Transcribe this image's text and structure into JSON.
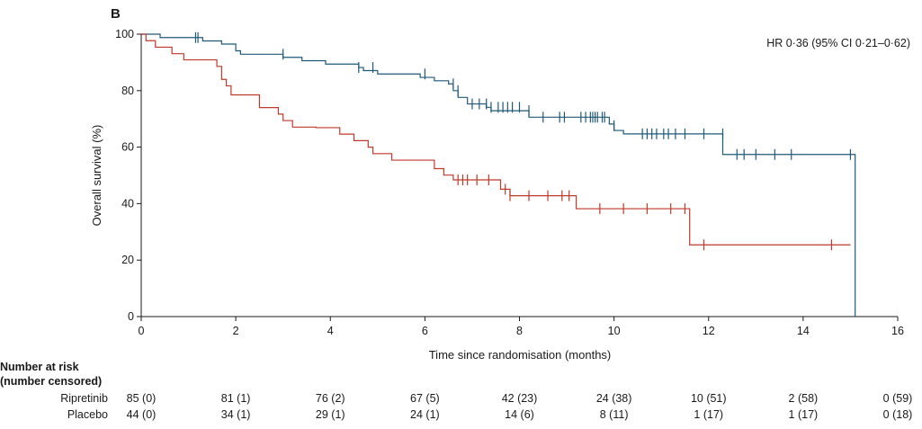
{
  "chart_data": {
    "type": "line",
    "subtype": "kaplan-meier",
    "panel_label": "B",
    "xlabel": "Time since randomisation (months)",
    "ylabel": "Overall survival (%)",
    "xlim": [
      0,
      16
    ],
    "ylim": [
      0,
      100
    ],
    "x_ticks": [
      0,
      2,
      4,
      6,
      8,
      10,
      12,
      14,
      16
    ],
    "y_ticks": [
      0,
      20,
      40,
      60,
      80,
      100
    ],
    "grid": false,
    "annotation": "HR 0·36 (95% CI 0·21–0·62)",
    "series": [
      {
        "name": "Ripretinib",
        "color": "#1f5a78",
        "steps": [
          [
            0,
            100
          ],
          [
            0.4,
            98.8
          ],
          [
            1.3,
            97.6
          ],
          [
            1.7,
            96.5
          ],
          [
            2.0,
            94.1
          ],
          [
            2.1,
            92.9
          ],
          [
            3.0,
            91.8
          ],
          [
            3.4,
            90.6
          ],
          [
            3.9,
            89.4
          ],
          [
            4.6,
            88.2
          ],
          [
            4.7,
            87.1
          ],
          [
            5.0,
            85.9
          ],
          [
            5.9,
            84.7
          ],
          [
            6.2,
            83.5
          ],
          [
            6.5,
            82.4
          ],
          [
            6.6,
            80.0
          ],
          [
            6.7,
            77.6
          ],
          [
            6.9,
            75.3
          ],
          [
            7.3,
            74.1
          ],
          [
            7.4,
            72.9
          ],
          [
            8.2,
            70.6
          ],
          [
            9.9,
            68.2
          ],
          [
            10.0,
            65.9
          ],
          [
            10.2,
            64.7
          ],
          [
            12.3,
            57.4
          ],
          [
            15.1,
            57.4
          ],
          [
            15.1,
            0
          ]
        ],
        "censored": [
          [
            1.15,
            98.8
          ],
          [
            1.2,
            98.8
          ],
          [
            3.0,
            92.9
          ],
          [
            4.6,
            88.2
          ],
          [
            4.9,
            88.2
          ],
          [
            6.0,
            85.9
          ],
          [
            6.6,
            82.4
          ],
          [
            6.7,
            80.0
          ],
          [
            7.0,
            75.3
          ],
          [
            7.15,
            75.3
          ],
          [
            7.3,
            75.3
          ],
          [
            7.4,
            74.1
          ],
          [
            7.55,
            74.1
          ],
          [
            7.65,
            74.1
          ],
          [
            7.75,
            74.1
          ],
          [
            7.85,
            74.1
          ],
          [
            8.0,
            74.1
          ],
          [
            8.2,
            72.9
          ],
          [
            8.5,
            70.6
          ],
          [
            8.85,
            70.6
          ],
          [
            8.95,
            70.6
          ],
          [
            9.3,
            70.6
          ],
          [
            9.4,
            70.6
          ],
          [
            9.5,
            70.6
          ],
          [
            9.55,
            70.6
          ],
          [
            9.6,
            70.6
          ],
          [
            9.65,
            70.6
          ],
          [
            9.75,
            70.6
          ],
          [
            9.8,
            70.6
          ],
          [
            10.0,
            67.6
          ],
          [
            10.6,
            64.7
          ],
          [
            10.7,
            64.7
          ],
          [
            10.8,
            64.7
          ],
          [
            10.9,
            64.7
          ],
          [
            11.05,
            64.7
          ],
          [
            11.15,
            64.7
          ],
          [
            11.3,
            64.7
          ],
          [
            11.5,
            64.7
          ],
          [
            11.9,
            64.7
          ],
          [
            12.3,
            64.7
          ],
          [
            12.6,
            57.4
          ],
          [
            12.75,
            57.4
          ],
          [
            13.0,
            57.4
          ],
          [
            13.4,
            57.4
          ],
          [
            13.75,
            57.4
          ],
          [
            15.0,
            57.4
          ]
        ]
      },
      {
        "name": "Placebo",
        "color": "#c0392b",
        "steps": [
          [
            0,
            100
          ],
          [
            0.1,
            97.7
          ],
          [
            0.3,
            95.4
          ],
          [
            0.65,
            93.1
          ],
          [
            0.9,
            90.9
          ],
          [
            1.6,
            88.6
          ],
          [
            1.7,
            84.0
          ],
          [
            1.8,
            81.7
          ],
          [
            1.9,
            78.5
          ],
          [
            2.5,
            74.0
          ],
          [
            2.9,
            71.7
          ],
          [
            3.0,
            69.4
          ],
          [
            3.2,
            67.1
          ],
          [
            3.7,
            66.9
          ],
          [
            4.2,
            64.6
          ],
          [
            4.5,
            62.3
          ],
          [
            4.8,
            60.0
          ],
          [
            4.9,
            57.7
          ],
          [
            5.3,
            55.4
          ],
          [
            6.2,
            52.4
          ],
          [
            6.4,
            50.1
          ],
          [
            6.6,
            48.4
          ],
          [
            7.6,
            45.1
          ],
          [
            7.8,
            42.8
          ],
          [
            9.2,
            38.2
          ],
          [
            11.6,
            25.4
          ],
          [
            15.0,
            25.4
          ]
        ],
        "censored": [
          [
            6.7,
            48.4
          ],
          [
            6.8,
            48.4
          ],
          [
            6.9,
            48.4
          ],
          [
            7.1,
            48.4
          ],
          [
            7.35,
            48.4
          ],
          [
            7.7,
            45.1
          ],
          [
            7.8,
            42.8
          ],
          [
            8.2,
            42.8
          ],
          [
            8.6,
            42.8
          ],
          [
            8.9,
            42.8
          ],
          [
            9.05,
            42.8
          ],
          [
            9.7,
            38.2
          ],
          [
            10.2,
            38.2
          ],
          [
            10.7,
            38.2
          ],
          [
            11.2,
            38.2
          ],
          [
            11.5,
            38.2
          ],
          [
            11.9,
            25.4
          ],
          [
            14.6,
            25.4
          ]
        ]
      }
    ]
  },
  "risk_table": {
    "title_line1": "Number at risk",
    "title_line2": "(number censored)",
    "rows": [
      {
        "name": "Ripretinib",
        "values": [
          "85 (0)",
          "81 (1)",
          "76 (2)",
          "67 (5)",
          "42 (23)",
          "24 (38)",
          "10 (51)",
          "2 (58)",
          "0 (59)"
        ]
      },
      {
        "name": "Placebo",
        "values": [
          "44 (0)",
          "34 (1)",
          "29 (1)",
          "24 (1)",
          "14 (6)",
          "8 (11)",
          "1 (17)",
          "1 (17)",
          "0 (18)"
        ]
      }
    ]
  }
}
